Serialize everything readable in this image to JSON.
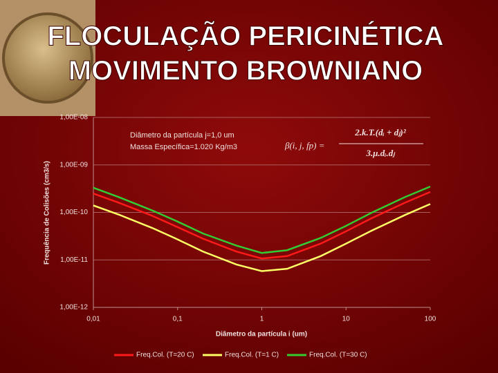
{
  "slide": {
    "title_lines": [
      "FLOCULAÇÃO PERICINÉTICA",
      "MOVIMENTO BROWNIANO"
    ]
  },
  "chart_data": {
    "type": "line",
    "xlabel": "Diâmetro da partícula i (um)",
    "ylabel": "Frequência de Colisões (cm3/s)",
    "annotations": [
      "Diâmetro da partícula j=1,0 um",
      "Massa Específica=1.020 Kg/m3"
    ],
    "formula": {
      "lhs": "β(i, j, fp) =",
      "numerator": "2.k.T.(dᵢ + dⱼ)²",
      "denominator": "3.μ.dᵢ.dⱼ"
    },
    "x_scale": "log",
    "y_scale": "log",
    "grid": true,
    "legend": "bottom",
    "xlim": [
      0.01,
      100
    ],
    "xticks": [
      {
        "value": 0.01,
        "label": "0,01"
      },
      {
        "value": 0.1,
        "label": "0,1"
      },
      1,
      10,
      100
    ],
    "ylim": [
      1e-12,
      1e-08
    ],
    "yticks": [
      {
        "value": 1e-12,
        "label": "1,00E-12"
      },
      {
        "value": 1e-11,
        "label": "1,00E-11"
      },
      {
        "value": 1e-10,
        "label": "1,00E-10"
      },
      {
        "value": 1e-09,
        "label": "1,00E-09"
      },
      {
        "value": 1e-08,
        "label": "1,00E-08"
      }
    ],
    "x": [
      0.01,
      0.02,
      0.05,
      0.1,
      0.2,
      0.5,
      1,
      2,
      5,
      10,
      20,
      50,
      100
    ],
    "series": [
      {
        "name": "Freq.Col. (T=20 C)",
        "color": "#ff1a1a",
        "values": [
          2.5e-10,
          1.6e-10,
          8.5e-11,
          4.9e-11,
          2.8e-11,
          1.5e-11,
          1.07e-11,
          1.2e-11,
          2.2e-11,
          4e-11,
          7.5e-11,
          1.6e-10,
          2.7e-10
        ]
      },
      {
        "name": "Freq.Col. (T=1 C)",
        "color": "#ffff66",
        "values": [
          1.4e-10,
          9e-11,
          4.7e-11,
          2.7e-11,
          1.5e-11,
          8e-12,
          5.8e-12,
          6.5e-12,
          1.2e-11,
          2.2e-11,
          4.1e-11,
          8.8e-11,
          1.5e-10
        ]
      },
      {
        "name": "Freq.Col. (T=30 C)",
        "color": "#33cc33",
        "values": [
          3.3e-10,
          2.1e-10,
          1.1e-10,
          6.4e-11,
          3.6e-11,
          2e-11,
          1.4e-11,
          1.6e-11,
          2.9e-11,
          5.2e-11,
          9.8e-11,
          2.1e-10,
          3.5e-10
        ]
      }
    ]
  }
}
